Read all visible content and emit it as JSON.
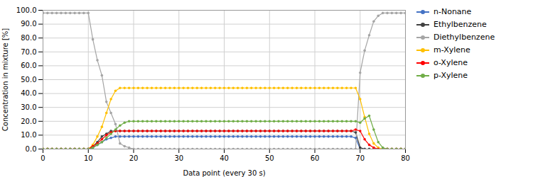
{
  "chart_data": {
    "type": "line",
    "xlabel": "Data point (every 30 s)",
    "ylabel": "Concentration in mixture [%]",
    "x": [
      0,
      1,
      2,
      3,
      4,
      5,
      6,
      7,
      8,
      9,
      10,
      11,
      12,
      13,
      14,
      15,
      16,
      17,
      18,
      19,
      20,
      21,
      22,
      23,
      24,
      25,
      26,
      27,
      28,
      29,
      30,
      31,
      32,
      33,
      34,
      35,
      36,
      37,
      38,
      39,
      40,
      41,
      42,
      43,
      44,
      45,
      46,
      47,
      48,
      49,
      50,
      51,
      52,
      53,
      54,
      55,
      56,
      57,
      58,
      59,
      60,
      61,
      62,
      63,
      64,
      65,
      66,
      67,
      68,
      69,
      70,
      71,
      72,
      73,
      74,
      75,
      76,
      77,
      78,
      79,
      80
    ],
    "series": [
      {
        "name": "n-Nonane",
        "color": "#4472C4",
        "values": [
          0,
          0,
          0,
          0,
          0,
          0,
          0,
          0,
          0,
          0,
          0,
          1,
          3,
          5,
          7,
          8,
          9,
          9,
          9,
          9,
          9,
          9,
          9,
          9,
          9,
          9,
          9,
          9,
          9,
          9,
          9,
          9,
          9,
          9,
          9,
          9,
          9,
          9,
          9,
          9,
          9,
          9,
          9,
          9,
          9,
          9,
          9,
          9,
          9,
          9,
          9,
          9,
          9,
          9,
          9,
          9,
          9,
          9,
          9,
          9,
          9,
          9,
          9,
          9,
          9,
          9,
          9,
          9,
          9,
          8,
          0,
          0,
          0,
          0,
          0,
          0,
          0,
          0,
          0,
          0,
          0
        ]
      },
      {
        "name": "Ethylbenzene",
        "color": "#404040",
        "values": [
          0,
          0,
          0,
          0,
          0,
          0,
          0,
          0,
          0,
          0,
          0,
          2,
          5,
          9,
          11,
          13,
          13,
          13,
          13,
          13,
          13,
          13,
          13,
          13,
          13,
          13,
          13,
          13,
          13,
          13,
          13,
          13,
          13,
          13,
          13,
          13,
          13,
          13,
          13,
          13,
          13,
          13,
          13,
          13,
          13,
          13,
          13,
          13,
          13,
          13,
          13,
          13,
          13,
          13,
          13,
          13,
          13,
          13,
          13,
          13,
          13,
          13,
          13,
          13,
          13,
          13,
          13,
          13,
          13,
          12,
          1,
          0,
          0,
          0,
          0,
          0,
          0,
          0,
          0,
          0,
          0
        ]
      },
      {
        "name": "Diethylbenzene",
        "color": "#A5A5A5",
        "values": [
          98,
          98,
          98,
          98,
          98,
          98,
          98,
          98,
          98,
          98,
          98,
          79,
          64,
          53,
          34,
          26,
          18,
          4,
          2,
          1,
          0,
          0,
          0,
          0,
          0,
          0,
          0,
          0,
          0,
          0,
          0,
          0,
          0,
          0,
          0,
          0,
          0,
          0,
          0,
          0,
          0,
          0,
          0,
          0,
          0,
          0,
          0,
          0,
          0,
          0,
          0,
          0,
          0,
          0,
          0,
          0,
          0,
          0,
          0,
          0,
          0,
          0,
          0,
          0,
          0,
          0,
          0,
          0,
          0,
          0,
          55,
          71,
          82,
          92,
          96,
          98,
          98,
          98,
          98,
          98,
          98
        ]
      },
      {
        "name": "m-Xylene",
        "color": "#FFC000",
        "values": [
          0,
          0,
          0,
          0,
          0,
          0,
          0,
          0,
          0,
          0,
          0,
          3,
          9,
          16,
          26,
          36,
          42,
          44,
          44,
          44,
          44,
          44,
          44,
          44,
          44,
          44,
          44,
          44,
          44,
          44,
          44,
          44,
          44,
          44,
          44,
          44,
          44,
          44,
          44,
          44,
          44,
          44,
          44,
          44,
          44,
          44,
          44,
          44,
          44,
          44,
          44,
          44,
          44,
          44,
          44,
          44,
          44,
          44,
          44,
          44,
          44,
          44,
          44,
          44,
          44,
          44,
          44,
          44,
          44,
          44,
          36,
          23,
          11,
          4,
          1,
          0,
          0,
          0,
          0,
          0,
          0
        ]
      },
      {
        "name": "o-Xylene",
        "color": "#FF0000",
        "values": [
          0,
          0,
          0,
          0,
          0,
          0,
          0,
          0,
          0,
          0,
          0,
          2,
          4,
          7,
          10,
          12,
          13,
          13,
          13,
          13,
          13,
          13,
          13,
          13,
          13,
          13,
          13,
          13,
          13,
          13,
          13,
          13,
          13,
          13,
          13,
          13,
          13,
          13,
          13,
          13,
          13,
          13,
          13,
          13,
          13,
          13,
          13,
          13,
          13,
          13,
          13,
          13,
          13,
          13,
          13,
          13,
          13,
          13,
          13,
          13,
          13,
          13,
          13,
          13,
          13,
          13,
          13,
          13,
          13,
          14,
          13,
          7,
          3,
          1,
          0,
          0,
          0,
          0,
          0,
          0,
          0
        ]
      },
      {
        "name": "p-Xylene",
        "color": "#70AD47",
        "values": [
          0,
          0,
          0,
          0,
          0,
          0,
          0,
          0,
          0,
          0,
          0,
          1,
          3,
          5,
          8,
          11,
          14,
          17,
          19,
          20,
          20,
          20,
          20,
          20,
          20,
          20,
          20,
          20,
          20,
          20,
          20,
          20,
          20,
          20,
          20,
          20,
          20,
          20,
          20,
          20,
          20,
          20,
          20,
          20,
          20,
          20,
          20,
          20,
          20,
          20,
          20,
          20,
          20,
          20,
          20,
          20,
          20,
          20,
          20,
          20,
          20,
          20,
          20,
          20,
          20,
          20,
          20,
          20,
          20,
          20,
          19,
          22,
          24,
          14,
          5,
          1,
          0,
          0,
          0,
          0,
          0
        ]
      }
    ],
    "xlim": [
      0,
      80
    ],
    "xticks": [
      0,
      10,
      20,
      30,
      40,
      50,
      60,
      70,
      80
    ],
    "ylim": [
      0,
      100
    ],
    "yticks": [
      {
        "value": 0,
        "label": "0.0"
      },
      {
        "value": 10,
        "label": "10.0"
      },
      {
        "value": 20,
        "label": "20.0"
      },
      {
        "value": 30,
        "label": "30.0"
      },
      {
        "value": 40,
        "label": "40.0"
      },
      {
        "value": 50,
        "label": "50.0"
      },
      {
        "value": 60,
        "label": "60.0"
      },
      {
        "value": 70,
        "label": "70.0"
      },
      {
        "value": 80,
        "label": "80.0"
      },
      {
        "value": 90,
        "label": "90.0"
      },
      {
        "value": 100,
        "label": "100.0"
      }
    ],
    "grid": true,
    "legend": "right",
    "marker": "circle"
  }
}
